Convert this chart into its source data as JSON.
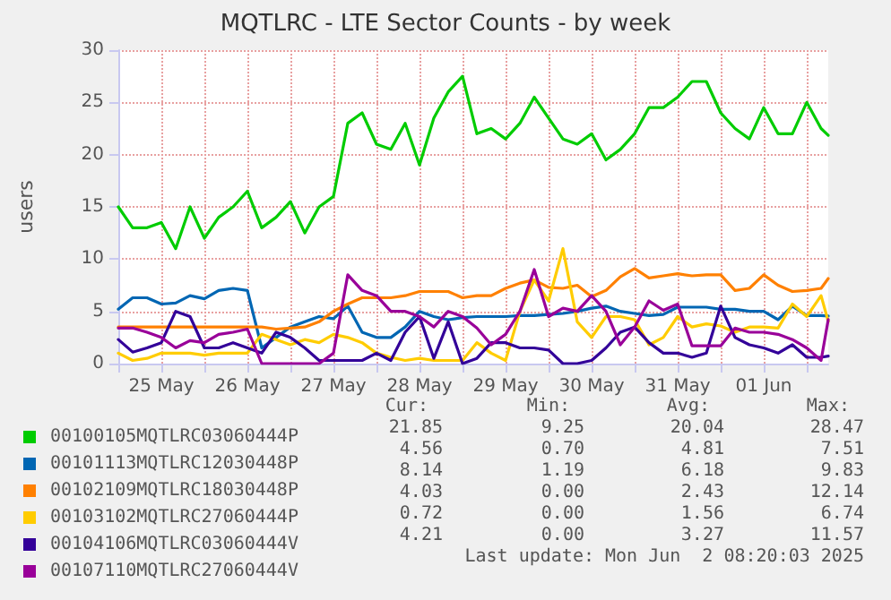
{
  "chart_data": {
    "type": "line",
    "title": "MQTLRC - LTE Sector Counts - by week",
    "ylabel": "users",
    "x": [
      "2025-05-25T00:00",
      "2025-05-25T04:00",
      "2025-05-25T08:00",
      "2025-05-25T12:00",
      "2025-05-25T16:00",
      "2025-05-25T20:00",
      "2025-05-26T00:00",
      "2025-05-26T04:00",
      "2025-05-26T08:00",
      "2025-05-26T12:00",
      "2025-05-26T16:00",
      "2025-05-26T20:00",
      "2025-05-27T00:00",
      "2025-05-27T04:00",
      "2025-05-27T08:00",
      "2025-05-27T12:00",
      "2025-05-27T16:00",
      "2025-05-27T20:00",
      "2025-05-28T00:00",
      "2025-05-28T04:00",
      "2025-05-28T08:00",
      "2025-05-28T12:00",
      "2025-05-28T16:00",
      "2025-05-28T20:00",
      "2025-05-29T00:00",
      "2025-05-29T04:00",
      "2025-05-29T08:00",
      "2025-05-29T12:00",
      "2025-05-29T16:00",
      "2025-05-29T20:00",
      "2025-05-30T00:00",
      "2025-05-30T04:00",
      "2025-05-30T08:00",
      "2025-05-30T12:00",
      "2025-05-30T16:00",
      "2025-05-30T20:00",
      "2025-05-31T00:00",
      "2025-05-31T04:00",
      "2025-05-31T08:00",
      "2025-05-31T12:00",
      "2025-05-31T16:00",
      "2025-05-31T20:00",
      "2025-06-01T00:00",
      "2025-06-01T04:00",
      "2025-06-01T08:00",
      "2025-06-01T12:00",
      "2025-06-01T16:00",
      "2025-06-01T20:00",
      "2025-06-02T00:00",
      "2025-06-02T04:00",
      "2025-06-02T06:00"
    ],
    "series": [
      {
        "name": "00100105MQTLRC03060444P",
        "color": "#00cc00",
        "values": [
          15,
          13,
          13,
          13.5,
          11,
          15,
          12,
          14,
          15,
          16.5,
          13,
          14,
          15.5,
          12.5,
          15,
          16,
          23,
          24,
          21,
          20.5,
          23,
          19,
          23.5,
          26,
          27.5,
          22,
          22.5,
          21.5,
          23,
          25.5,
          23.5,
          21.5,
          21,
          22,
          19.5,
          20.5,
          22,
          24.5,
          24.5,
          25.5,
          27,
          27,
          24,
          22.5,
          21.5,
          24.5,
          22,
          22,
          25,
          22.5,
          21.85
        ]
      },
      {
        "name": "00101113MQTLRC12030448P",
        "color": "#0066b3",
        "values": [
          5.2,
          6.3,
          6.3,
          5.7,
          5.8,
          6.5,
          6.2,
          7,
          7.2,
          7,
          1.5,
          2.5,
          3.5,
          4,
          4.5,
          4.3,
          5.5,
          3,
          2.5,
          2.5,
          3.5,
          5,
          4.5,
          4.2,
          4.4,
          4.5,
          4.5,
          4.5,
          4.6,
          4.6,
          4.7,
          4.8,
          5,
          5.3,
          5.5,
          5,
          4.8,
          4.6,
          4.7,
          5.4,
          5.4,
          5.4,
          5.2,
          5.2,
          5,
          5,
          4.2,
          5.5,
          4.6,
          4.6,
          4.56
        ]
      },
      {
        "name": "00102109MQTLRC18030448P",
        "color": "#ff8000",
        "values": [
          3.5,
          3.5,
          3.5,
          3.5,
          3.5,
          3.5,
          3.5,
          3.5,
          3.5,
          3.5,
          3.5,
          3.3,
          3.4,
          3.5,
          4,
          5,
          5.7,
          6.3,
          6.3,
          6.3,
          6.5,
          6.9,
          6.9,
          6.9,
          6.3,
          6.5,
          6.5,
          7.2,
          7.7,
          8,
          7.3,
          7.2,
          7.5,
          6.4,
          7,
          8.3,
          9.1,
          8.2,
          8.4,
          8.6,
          8.4,
          8.5,
          8.5,
          7,
          7.2,
          8.5,
          7.5,
          6.9,
          7,
          7.2,
          8.14
        ]
      },
      {
        "name": "00103102MQTLRC27060444P",
        "color": "#ffcc00",
        "values": [
          1,
          0.3,
          0.5,
          1,
          1,
          1,
          0.8,
          1,
          1,
          1,
          2.8,
          2.3,
          1.8,
          2.3,
          2,
          2.8,
          2.5,
          2,
          1,
          0.6,
          0.3,
          0.5,
          0.3,
          0.3,
          0.3,
          2,
          1,
          0.3,
          5,
          8,
          6,
          11,
          4,
          2.5,
          4.5,
          4.5,
          4.2,
          1.8,
          2.5,
          4.5,
          3.5,
          3.8,
          3.6,
          3,
          3.5,
          3.5,
          3.4,
          5.7,
          4.5,
          6.5,
          4.03
        ]
      },
      {
        "name": "00104106MQTLRC03060444V",
        "color": "#330099",
        "values": [
          2.3,
          1.1,
          1.5,
          2,
          5,
          4.5,
          1.5,
          1.5,
          2,
          1.5,
          1,
          3,
          2.5,
          1.5,
          0.3,
          0.3,
          0.3,
          0.3,
          1,
          0.3,
          3,
          4.5,
          0.5,
          4,
          0,
          0.5,
          2,
          2,
          1.5,
          1.5,
          1.3,
          0,
          0,
          0.3,
          1.5,
          3,
          3.5,
          2,
          1,
          1,
          0.6,
          1,
          5.5,
          2.5,
          1.8,
          1.5,
          1,
          1.8,
          0.6,
          0.6,
          0.72
        ]
      },
      {
        "name": "00107110MQTLRC27060444V",
        "color": "#990099",
        "values": [
          3.4,
          3.4,
          3,
          2.5,
          1.5,
          2.2,
          2,
          2.8,
          3,
          3.3,
          0,
          0,
          0,
          0,
          0,
          1,
          8.5,
          7,
          6.5,
          5,
          5,
          4.5,
          3.5,
          5,
          4.5,
          3.4,
          1.8,
          2.8,
          5,
          9,
          4.5,
          5.3,
          5,
          6.5,
          5,
          1.8,
          3.5,
          6,
          5.1,
          5.7,
          1.7,
          1.7,
          1.7,
          3.4,
          3,
          3,
          2.8,
          2.3,
          1.5,
          0.3,
          4.21
        ]
      }
    ],
    "xlim": [
      "2025-05-25T00:00",
      "2025-06-02T06:00"
    ],
    "xticks": [
      {
        "value": "2025-05-25T00:00",
        "label": null
      },
      {
        "value": "2025-05-25T12:00",
        "label": "25 May"
      },
      {
        "value": "2025-05-26T00:00",
        "label": null
      },
      {
        "value": "2025-05-26T12:00",
        "label": "26 May"
      },
      {
        "value": "2025-05-27T00:00",
        "label": null
      },
      {
        "value": "2025-05-27T12:00",
        "label": "27 May"
      },
      {
        "value": "2025-05-28T00:00",
        "label": null
      },
      {
        "value": "2025-05-28T12:00",
        "label": "28 May"
      },
      {
        "value": "2025-05-29T00:00",
        "label": null
      },
      {
        "value": "2025-05-29T12:00",
        "label": "29 May"
      },
      {
        "value": "2025-05-30T00:00",
        "label": null
      },
      {
        "value": "2025-05-30T12:00",
        "label": "30 May"
      },
      {
        "value": "2025-05-31T00:00",
        "label": null
      },
      {
        "value": "2025-05-31T12:00",
        "label": "31 May"
      },
      {
        "value": "2025-06-01T00:00",
        "label": null
      },
      {
        "value": "2025-06-01T12:00",
        "label": "01 Jun"
      },
      {
        "value": "2025-06-02T00:00",
        "label": null
      }
    ],
    "ylim": [
      0,
      30
    ],
    "yticks": [
      0,
      5,
      10,
      15,
      20,
      25,
      30
    ],
    "grid": true,
    "legend": "bottom left",
    "marker": "none",
    "line_style": "solid",
    "annotations": [
      "Cur:",
      "Min:",
      "Avg:",
      "Max:",
      "21.85",
      "9.25",
      "20.04",
      "28.47",
      "4.56",
      "0.70",
      "4.81",
      "7.51",
      "8.14",
      "1.19",
      "6.18",
      "9.83",
      "4.03",
      "0.00",
      "2.43",
      "12.14",
      "0.72",
      "0.00",
      "1.56",
      "6.74",
      "4.21",
      "0.00",
      "3.27",
      "11.57",
      "Last update: Mon Jun  2 08:20:03 2025"
    ]
  }
}
